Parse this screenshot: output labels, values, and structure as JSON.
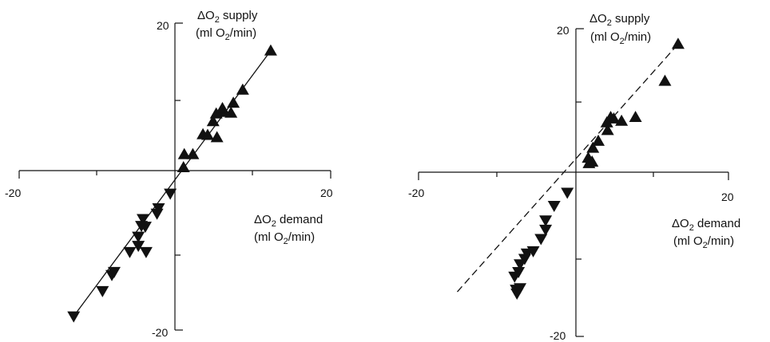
{
  "chart_data": [
    {
      "type": "scatter",
      "panel": "left",
      "xlim": [
        -20,
        20
      ],
      "ylim": [
        -20,
        20
      ],
      "x_tick_labels": [
        "-20",
        "20"
      ],
      "y_tick_labels": [
        "20",
        "-20"
      ],
      "ylabel_main": "ΔO",
      "ylabel_sub": "2",
      "ylabel_rest": " supply",
      "ylabel_unit_a": "(ml O",
      "ylabel_unit_sub": "2",
      "ylabel_unit_b": "/min)",
      "xlabel_main": "ΔO",
      "xlabel_sub": "2",
      "xlabel_rest": " demand",
      "xlabel_unit_a": "(ml O",
      "xlabel_unit_sub": "2",
      "xlabel_unit_b": "/min)",
      "fit_line": {
        "style": "solid",
        "x": [
          -13,
          12.3
        ],
        "y": [
          -18.2,
          16.4
        ]
      },
      "series": [
        {
          "marker": "triangle-up",
          "points": [
            [
              12.3,
              16.4
            ],
            [
              8.7,
              11.3
            ],
            [
              7.5,
              9.6
            ],
            [
              7.2,
              8.3
            ],
            [
              5.3,
              8.2
            ],
            [
              6.2,
              8.4
            ],
            [
              4.9,
              7.2
            ],
            [
              3.6,
              5.5
            ],
            [
              4.2,
              5.4
            ],
            [
              5.4,
              5.1
            ],
            [
              2.3,
              2.9
            ],
            [
              1.2,
              2.9
            ],
            [
              1.1,
              1.2
            ],
            [
              6.1,
              8.9
            ]
          ]
        },
        {
          "marker": "triangle-down",
          "points": [
            [
              -0.6,
              -2.2
            ],
            [
              -2.1,
              -4.1
            ],
            [
              -2.3,
              -4.8
            ],
            [
              -4.1,
              -5.5
            ],
            [
              -4.3,
              -6.4
            ],
            [
              -3.8,
              -6.5
            ],
            [
              -4.7,
              -7.8
            ],
            [
              -4.7,
              -9.0
            ],
            [
              -5.8,
              -9.8
            ],
            [
              -3.7,
              -9.8
            ],
            [
              -7.8,
              -12.4
            ],
            [
              -8.1,
              -12.8
            ],
            [
              -9.3,
              -14.9
            ],
            [
              -13.0,
              -18.2
            ]
          ]
        }
      ]
    },
    {
      "type": "scatter",
      "panel": "right",
      "xlim": [
        -20,
        20
      ],
      "ylim": [
        -20,
        20
      ],
      "x_tick_labels": [
        "-20",
        "20"
      ],
      "y_tick_labels": [
        "20",
        "-20"
      ],
      "ylabel_main": "ΔO",
      "ylabel_sub": "2",
      "ylabel_rest": " supply",
      "ylabel_unit_a": "(ml O",
      "ylabel_unit_sub": "2",
      "ylabel_unit_b": "/min)",
      "xlabel_main": "ΔO",
      "xlabel_sub": "2",
      "xlabel_rest": " demand",
      "xlabel_unit_a": "(ml O",
      "xlabel_unit_sub": "2",
      "xlabel_unit_b": "/min)",
      "fit_line": {
        "style": "dashed",
        "x": [
          -15.0,
          13.5
        ],
        "y": [
          -14.2,
          18.0
        ]
      },
      "series": [
        {
          "marker": "triangle-up",
          "points": [
            [
              13.5,
              18.0
            ],
            [
              11.8,
              13.2
            ],
            [
              8.0,
              8.5
            ],
            [
              6.2,
              8.0
            ],
            [
              5.2,
              8.3
            ],
            [
              4.8,
              8.5
            ],
            [
              4.4,
              6.8
            ],
            [
              3.2,
              5.4
            ],
            [
              2.5,
              4.5
            ],
            [
              1.9,
              3.2
            ],
            [
              2.4,
              2.7
            ],
            [
              2.0,
              2.5
            ],
            [
              4.3,
              7.8
            ]
          ]
        },
        {
          "marker": "triangle-down",
          "points": [
            [
              -0.8,
              -1.3
            ],
            [
              -2.5,
              -3.0
            ],
            [
              -3.6,
              -4.9
            ],
            [
              -3.6,
              -6.1
            ],
            [
              -4.2,
              -7.3
            ],
            [
              -5.2,
              -8.9
            ],
            [
              -6.0,
              -9.2
            ],
            [
              -6.3,
              -9.9
            ],
            [
              -6.9,
              -10.6
            ],
            [
              -7.1,
              -11.6
            ],
            [
              -7.6,
              -12.2
            ],
            [
              -7.4,
              -13.9
            ],
            [
              -6.9,
              -13.7
            ],
            [
              -7.3,
              -14.4
            ]
          ]
        }
      ]
    }
  ]
}
